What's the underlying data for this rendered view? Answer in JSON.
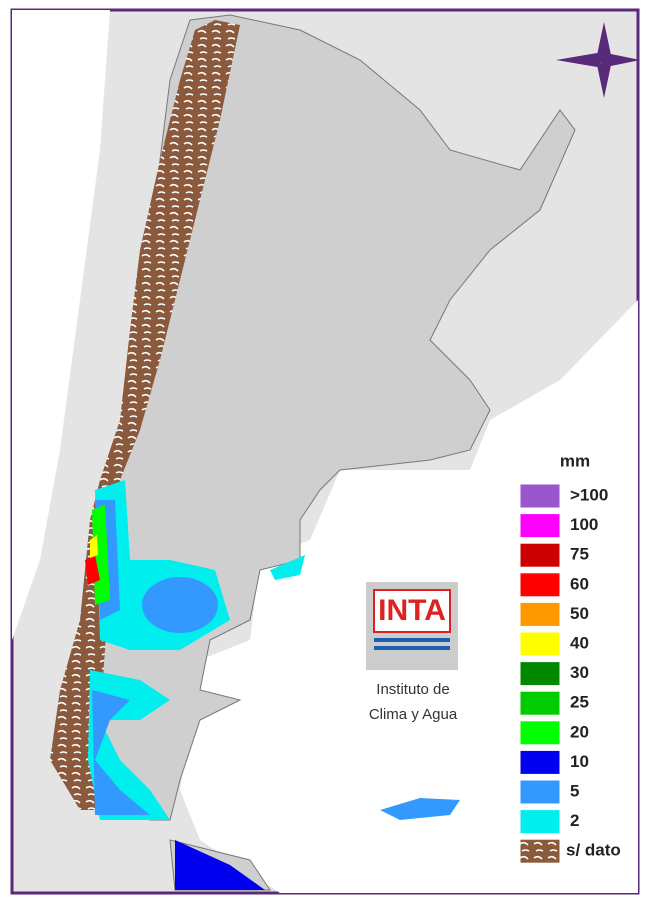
{
  "legend": {
    "title": "mm",
    "items": [
      {
        "label": ">100",
        "color": "#9955cc"
      },
      {
        "label": "100",
        "color": "#ff00ff"
      },
      {
        "label": "75",
        "color": "#cc0000"
      },
      {
        "label": "60",
        "color": "#ff0000"
      },
      {
        "label": "50",
        "color": "#ff9900"
      },
      {
        "label": "40",
        "color": "#ffff00"
      },
      {
        "label": "30",
        "color": "#008800"
      },
      {
        "label": "25",
        "color": "#00cc00"
      },
      {
        "label": "20",
        "color": "#00ff00"
      },
      {
        "label": "10",
        "color": "#0000ee"
      },
      {
        "label": "5",
        "color": "#3399ff"
      },
      {
        "label": "2",
        "color": "#00eeee"
      },
      {
        "label": "s/ dato",
        "color": "#8b5a3c"
      }
    ]
  },
  "logo": {
    "text": "INTA",
    "caption": [
      "Instituto de",
      "Clima y Agua"
    ]
  }
}
